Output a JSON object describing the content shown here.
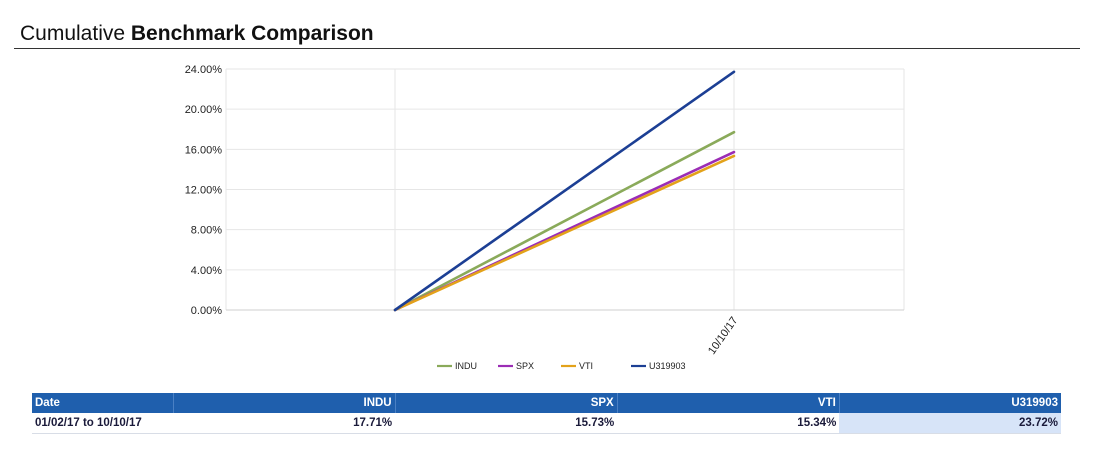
{
  "header": {
    "title_light": "Cumulative",
    "title_bold": "Benchmark Comparison"
  },
  "chart_data": {
    "type": "line",
    "x": [
      "",
      "10/10/17"
    ],
    "ylim": [
      0,
      24
    ],
    "yticks": [
      0,
      4,
      8,
      12,
      16,
      20,
      24
    ],
    "ytick_labels": [
      "0.00%",
      "4.00%",
      "8.00%",
      "12.00%",
      "16.00%",
      "20.00%",
      "24.00%"
    ],
    "grid": true,
    "legend_position": "bottom",
    "series": [
      {
        "name": "INDU",
        "color": "#8aaa5a",
        "values": [
          0,
          17.71
        ]
      },
      {
        "name": "SPX",
        "color": "#9b2db5",
        "values": [
          0,
          15.73
        ]
      },
      {
        "name": "VTI",
        "color": "#e3a21a",
        "values": [
          0,
          15.34
        ]
      },
      {
        "name": "U319903",
        "color": "#1c3f94",
        "values": [
          0,
          23.72
        ]
      }
    ]
  },
  "table": {
    "headers": [
      "Date",
      "INDU",
      "SPX",
      "VTI",
      "U319903"
    ],
    "rows": [
      [
        "01/02/17 to 10/10/17",
        "17.71%",
        "15.73%",
        "15.34%",
        "23.72%"
      ]
    ]
  }
}
